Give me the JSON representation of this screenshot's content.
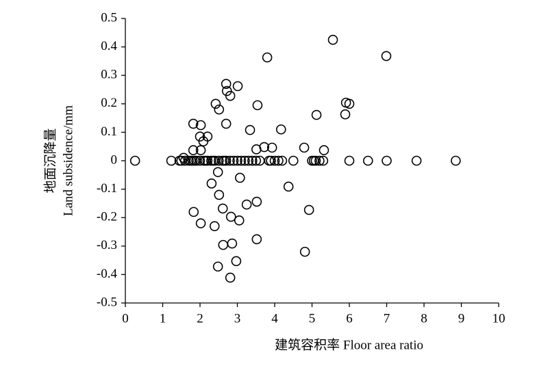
{
  "chart_data": {
    "type": "scatter",
    "x_label": "建筑容积率 Floor area ratio",
    "y_label": [
      "地面沉降量",
      "Land subsidence/mm"
    ],
    "x": [
      0.26,
      1.23,
      1.45,
      1.5,
      1.56,
      1.6,
      1.7,
      1.75,
      1.8,
      1.85,
      1.9,
      2.0,
      2.1,
      2.15,
      2.2,
      2.3,
      2.35,
      2.4,
      2.5,
      2.6,
      2.65,
      2.7,
      2.8,
      2.9,
      3.0,
      3.1,
      3.2,
      3.3,
      3.4,
      3.5,
      3.6,
      3.85,
      3.9,
      4.0,
      4.1,
      4.2,
      4.5,
      5.0,
      5.05,
      5.1,
      5.2,
      5.3,
      6.0,
      6.5,
      7.0,
      7.8,
      8.85,
      1.82,
      2.02,
      2.0,
      2.09,
      2.2,
      1.82,
      2.02,
      2.42,
      2.51,
      2.7,
      2.72,
      2.81,
      3.01,
      2.7,
      3.34,
      3.54,
      3.51,
      3.72,
      3.93,
      4.17,
      3.8,
      5.56,
      6.99,
      5.91,
      6.0,
      5.89,
      5.12,
      4.79,
      5.32,
      2.31,
      2.48,
      2.51,
      1.83,
      2.02,
      2.39,
      2.61,
      2.83,
      3.05,
      3.07,
      3.25,
      3.52,
      3.52,
      2.62,
      2.86,
      2.97,
      2.48,
      2.81,
      4.37,
      4.92,
      4.81
    ],
    "y": [
      0,
      0,
      0,
      0,
      0.01,
      0,
      0,
      0,
      0,
      0,
      0,
      0,
      0,
      0,
      0,
      0,
      0,
      0,
      0,
      0,
      0,
      0,
      0,
      0,
      0,
      0,
      0,
      0,
      0,
      0,
      0,
      0,
      0,
      0,
      0,
      0,
      0,
      0,
      0,
      0,
      0,
      0,
      0,
      0,
      0,
      0,
      0,
      0.13,
      0.125,
      0.085,
      0.068,
      0.085,
      0.037,
      0.037,
      0.2,
      0.18,
      0.27,
      0.245,
      0.228,
      0.262,
      0.13,
      0.108,
      0.195,
      0.04,
      0.048,
      0.046,
      0.11,
      0.363,
      0.425,
      0.368,
      0.204,
      0.2,
      0.163,
      0.161,
      0.046,
      0.037,
      -0.08,
      -0.04,
      -0.12,
      -0.18,
      -0.22,
      -0.23,
      -0.168,
      -0.197,
      -0.21,
      -0.06,
      -0.154,
      -0.144,
      -0.276,
      -0.296,
      -0.291,
      -0.353,
      -0.372,
      -0.411,
      -0.091,
      -0.173,
      -0.32
    ],
    "color": "#000000",
    "xlim": [
      0,
      10
    ],
    "xticks": [
      0,
      1,
      2,
      3,
      4,
      5,
      6,
      7,
      8,
      9,
      10
    ],
    "ylim": [
      -0.5,
      0.5
    ],
    "yticks": [
      -0.5,
      -0.4,
      -0.3,
      -0.2,
      -0.1,
      0,
      0.1,
      0.2,
      0.3,
      0.4,
      0.5
    ],
    "grid": false
  }
}
